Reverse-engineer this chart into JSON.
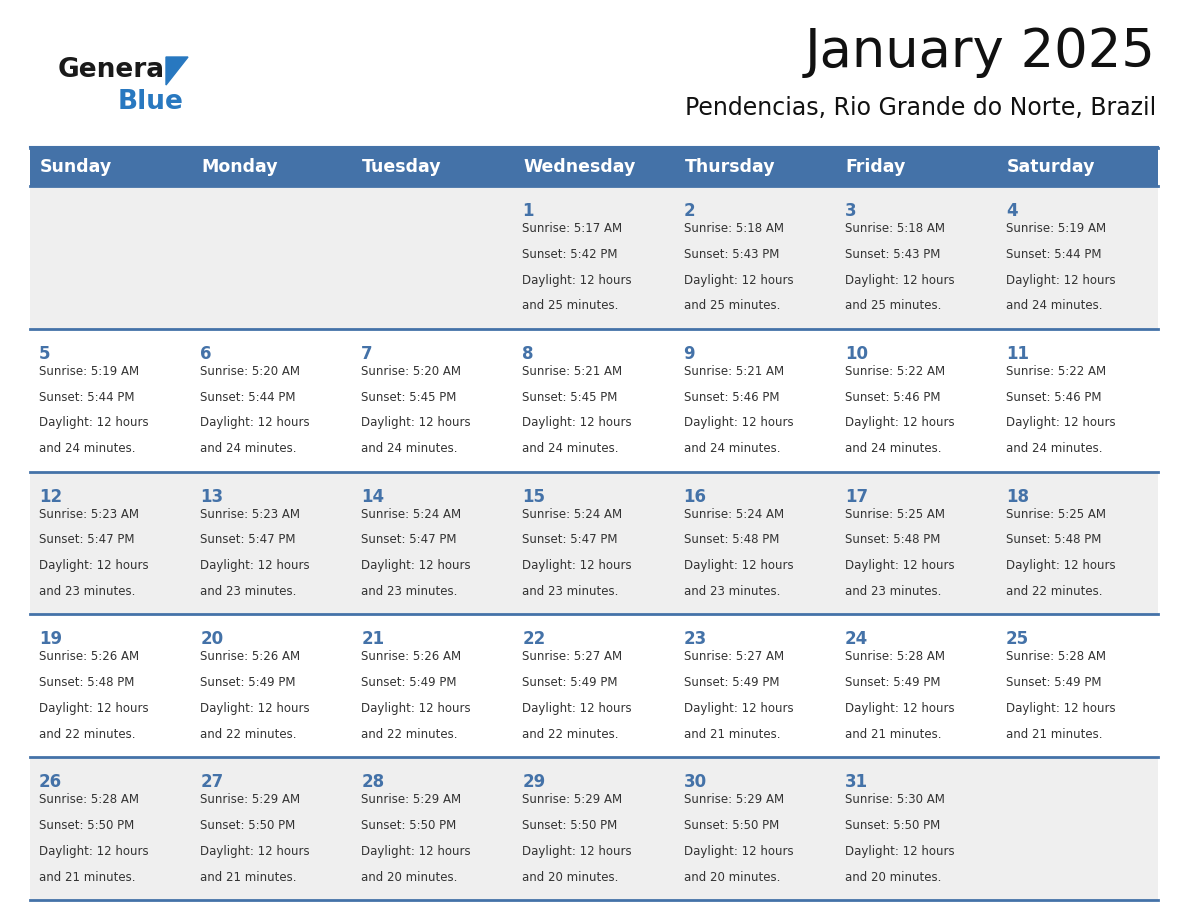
{
  "title": "January 2025",
  "subtitle": "Pendencias, Rio Grande do Norte, Brazil",
  "days_of_week": [
    "Sunday",
    "Monday",
    "Tuesday",
    "Wednesday",
    "Thursday",
    "Friday",
    "Saturday"
  ],
  "header_bg": "#4472A8",
  "header_text_color": "#FFFFFF",
  "cell_bg_odd": "#EFEFEF",
  "cell_bg_even": "#FFFFFF",
  "cell_border_color": "#4472A8",
  "day_number_color": "#4472A8",
  "cell_text_color": "#333333",
  "background_color": "#FFFFFF",
  "logo_general_color": "#1A1A1A",
  "logo_blue_color": "#2878C0",
  "calendar_data": [
    {
      "day": 1,
      "col": 3,
      "row": 0,
      "sunrise": "5:17 AM",
      "sunset": "5:42 PM",
      "daylight_hours": 12,
      "daylight_minutes": 25
    },
    {
      "day": 2,
      "col": 4,
      "row": 0,
      "sunrise": "5:18 AM",
      "sunset": "5:43 PM",
      "daylight_hours": 12,
      "daylight_minutes": 25
    },
    {
      "day": 3,
      "col": 5,
      "row": 0,
      "sunrise": "5:18 AM",
      "sunset": "5:43 PM",
      "daylight_hours": 12,
      "daylight_minutes": 25
    },
    {
      "day": 4,
      "col": 6,
      "row": 0,
      "sunrise": "5:19 AM",
      "sunset": "5:44 PM",
      "daylight_hours": 12,
      "daylight_minutes": 24
    },
    {
      "day": 5,
      "col": 0,
      "row": 1,
      "sunrise": "5:19 AM",
      "sunset": "5:44 PM",
      "daylight_hours": 12,
      "daylight_minutes": 24
    },
    {
      "day": 6,
      "col": 1,
      "row": 1,
      "sunrise": "5:20 AM",
      "sunset": "5:44 PM",
      "daylight_hours": 12,
      "daylight_minutes": 24
    },
    {
      "day": 7,
      "col": 2,
      "row": 1,
      "sunrise": "5:20 AM",
      "sunset": "5:45 PM",
      "daylight_hours": 12,
      "daylight_minutes": 24
    },
    {
      "day": 8,
      "col": 3,
      "row": 1,
      "sunrise": "5:21 AM",
      "sunset": "5:45 PM",
      "daylight_hours": 12,
      "daylight_minutes": 24
    },
    {
      "day": 9,
      "col": 4,
      "row": 1,
      "sunrise": "5:21 AM",
      "sunset": "5:46 PM",
      "daylight_hours": 12,
      "daylight_minutes": 24
    },
    {
      "day": 10,
      "col": 5,
      "row": 1,
      "sunrise": "5:22 AM",
      "sunset": "5:46 PM",
      "daylight_hours": 12,
      "daylight_minutes": 24
    },
    {
      "day": 11,
      "col": 6,
      "row": 1,
      "sunrise": "5:22 AM",
      "sunset": "5:46 PM",
      "daylight_hours": 12,
      "daylight_minutes": 24
    },
    {
      "day": 12,
      "col": 0,
      "row": 2,
      "sunrise": "5:23 AM",
      "sunset": "5:47 PM",
      "daylight_hours": 12,
      "daylight_minutes": 23
    },
    {
      "day": 13,
      "col": 1,
      "row": 2,
      "sunrise": "5:23 AM",
      "sunset": "5:47 PM",
      "daylight_hours": 12,
      "daylight_minutes": 23
    },
    {
      "day": 14,
      "col": 2,
      "row": 2,
      "sunrise": "5:24 AM",
      "sunset": "5:47 PM",
      "daylight_hours": 12,
      "daylight_minutes": 23
    },
    {
      "day": 15,
      "col": 3,
      "row": 2,
      "sunrise": "5:24 AM",
      "sunset": "5:47 PM",
      "daylight_hours": 12,
      "daylight_minutes": 23
    },
    {
      "day": 16,
      "col": 4,
      "row": 2,
      "sunrise": "5:24 AM",
      "sunset": "5:48 PM",
      "daylight_hours": 12,
      "daylight_minutes": 23
    },
    {
      "day": 17,
      "col": 5,
      "row": 2,
      "sunrise": "5:25 AM",
      "sunset": "5:48 PM",
      "daylight_hours": 12,
      "daylight_minutes": 23
    },
    {
      "day": 18,
      "col": 6,
      "row": 2,
      "sunrise": "5:25 AM",
      "sunset": "5:48 PM",
      "daylight_hours": 12,
      "daylight_minutes": 22
    },
    {
      "day": 19,
      "col": 0,
      "row": 3,
      "sunrise": "5:26 AM",
      "sunset": "5:48 PM",
      "daylight_hours": 12,
      "daylight_minutes": 22
    },
    {
      "day": 20,
      "col": 1,
      "row": 3,
      "sunrise": "5:26 AM",
      "sunset": "5:49 PM",
      "daylight_hours": 12,
      "daylight_minutes": 22
    },
    {
      "day": 21,
      "col": 2,
      "row": 3,
      "sunrise": "5:26 AM",
      "sunset": "5:49 PM",
      "daylight_hours": 12,
      "daylight_minutes": 22
    },
    {
      "day": 22,
      "col": 3,
      "row": 3,
      "sunrise": "5:27 AM",
      "sunset": "5:49 PM",
      "daylight_hours": 12,
      "daylight_minutes": 22
    },
    {
      "day": 23,
      "col": 4,
      "row": 3,
      "sunrise": "5:27 AM",
      "sunset": "5:49 PM",
      "daylight_hours": 12,
      "daylight_minutes": 21
    },
    {
      "day": 24,
      "col": 5,
      "row": 3,
      "sunrise": "5:28 AM",
      "sunset": "5:49 PM",
      "daylight_hours": 12,
      "daylight_minutes": 21
    },
    {
      "day": 25,
      "col": 6,
      "row": 3,
      "sunrise": "5:28 AM",
      "sunset": "5:49 PM",
      "daylight_hours": 12,
      "daylight_minutes": 21
    },
    {
      "day": 26,
      "col": 0,
      "row": 4,
      "sunrise": "5:28 AM",
      "sunset": "5:50 PM",
      "daylight_hours": 12,
      "daylight_minutes": 21
    },
    {
      "day": 27,
      "col": 1,
      "row": 4,
      "sunrise": "5:29 AM",
      "sunset": "5:50 PM",
      "daylight_hours": 12,
      "daylight_minutes": 21
    },
    {
      "day": 28,
      "col": 2,
      "row": 4,
      "sunrise": "5:29 AM",
      "sunset": "5:50 PM",
      "daylight_hours": 12,
      "daylight_minutes": 20
    },
    {
      "day": 29,
      "col": 3,
      "row": 4,
      "sunrise": "5:29 AM",
      "sunset": "5:50 PM",
      "daylight_hours": 12,
      "daylight_minutes": 20
    },
    {
      "day": 30,
      "col": 4,
      "row": 4,
      "sunrise": "5:29 AM",
      "sunset": "5:50 PM",
      "daylight_hours": 12,
      "daylight_minutes": 20
    },
    {
      "day": 31,
      "col": 5,
      "row": 4,
      "sunrise": "5:30 AM",
      "sunset": "5:50 PM",
      "daylight_hours": 12,
      "daylight_minutes": 20
    }
  ]
}
